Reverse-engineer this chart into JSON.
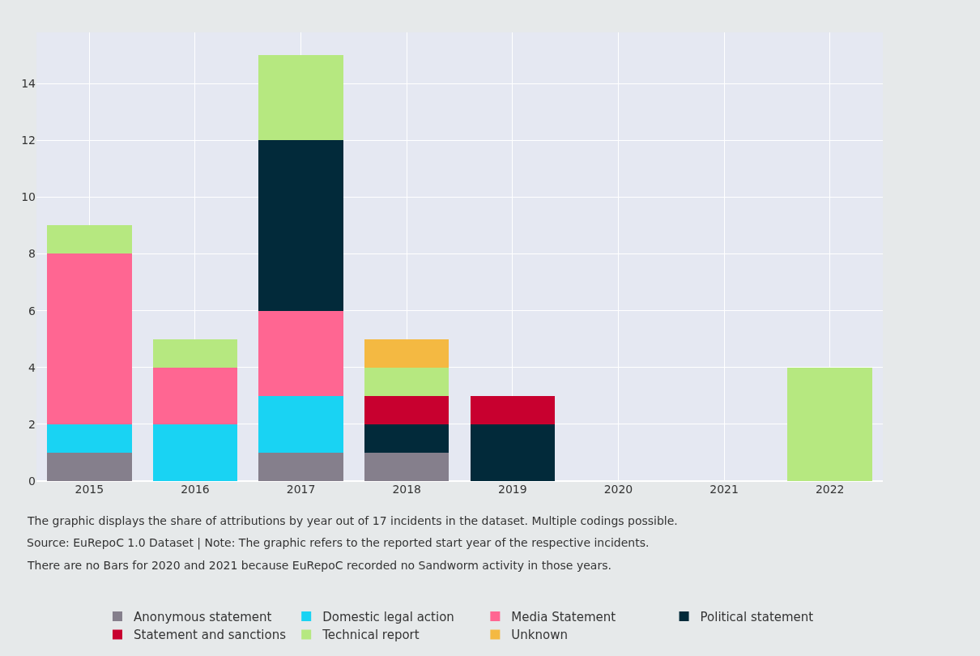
{
  "chart_data": {
    "type": "bar",
    "stacked": true,
    "categories": [
      "2015",
      "2016",
      "2017",
      "2018",
      "2019",
      "2020",
      "2021",
      "2022"
    ],
    "series": [
      {
        "name": "Anonymous statement",
        "color": "#857f8c",
        "values": [
          1,
          0,
          1,
          1,
          0,
          0,
          0,
          0
        ]
      },
      {
        "name": "Domestic legal action",
        "color": "#19d3f3",
        "values": [
          1,
          2,
          2,
          0,
          0,
          0,
          0,
          0
        ]
      },
      {
        "name": "Media Statement",
        "color": "#ff6692",
        "values": [
          6,
          2,
          3,
          0,
          0,
          0,
          0,
          0
        ]
      },
      {
        "name": "Political statement",
        "color": "#022a3a",
        "values": [
          0,
          0,
          6,
          1,
          2,
          0,
          0,
          0
        ]
      },
      {
        "name": "Statement and sanctions",
        "color": "#c8002f",
        "values": [
          0,
          0,
          0,
          1,
          1,
          0,
          0,
          0
        ]
      },
      {
        "name": "Technical report",
        "color": "#b6e880",
        "values": [
          1,
          1,
          3,
          1,
          0,
          0,
          0,
          4
        ]
      },
      {
        "name": "Unknown",
        "color": "#f4b942",
        "values": [
          0,
          0,
          0,
          1,
          0,
          0,
          0,
          0
        ]
      }
    ],
    "ylim": [
      0,
      15.8
    ],
    "yticks": [
      0,
      2,
      4,
      6,
      8,
      10,
      12,
      14
    ],
    "grid": true,
    "legend": "bottom",
    "annotations": [
      "The graphic displays the share of attributions by year out of 17 incidents in the dataset. Multiple codings possible.",
      "Source: EuRepoC 1.0 Dataset | Note: The graphic refers to the reported start year of the respective incidents.",
      "There are no Bars for 2020 and 2021 because EuRepoC recorded no Sandworm activity in those years."
    ]
  }
}
